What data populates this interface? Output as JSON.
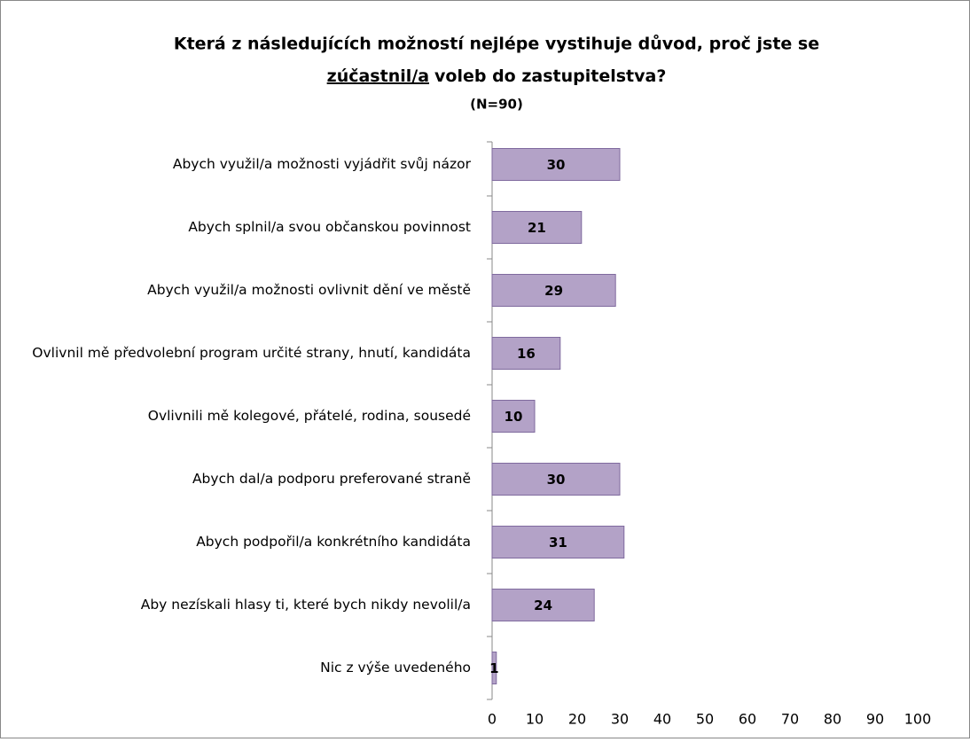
{
  "chart_data": {
    "type": "bar",
    "orientation": "horizontal",
    "title": {
      "line1": "Která z následujících  možností nejlépe vystihuje důvod, proč jste se",
      "underlined": "zúčastnil/a",
      "rest": "voleb do zastupitelstva?"
    },
    "subtitle": "(N=90)",
    "categories": [
      "Abych využil/a možnosti vyjádřit svůj názor",
      "Abych splnil/a svou občanskou povinnost",
      "Abych využil/a možnosti ovlivnit dění ve městě",
      "Ovlivnil mě předvolební program určité strany, hnutí, kandidáta",
      "Ovlivnili mě kolegové, přátelé, rodina, sousedé",
      "Abych dal/a podporu preferované straně",
      "Abych podpořil/a konkrétního kandidáta",
      "Aby nezískali hlasy ti, které bych nikdy nevolil/a",
      "Nic z výše uvedeného"
    ],
    "values": [
      30,
      21,
      29,
      16,
      10,
      30,
      31,
      24,
      1
    ],
    "color": "#b3a2c7",
    "xlim": [
      0,
      100
    ],
    "xticks": [
      0,
      10,
      20,
      30,
      40,
      50,
      60,
      70,
      80,
      90,
      100
    ],
    "grid": false
  }
}
